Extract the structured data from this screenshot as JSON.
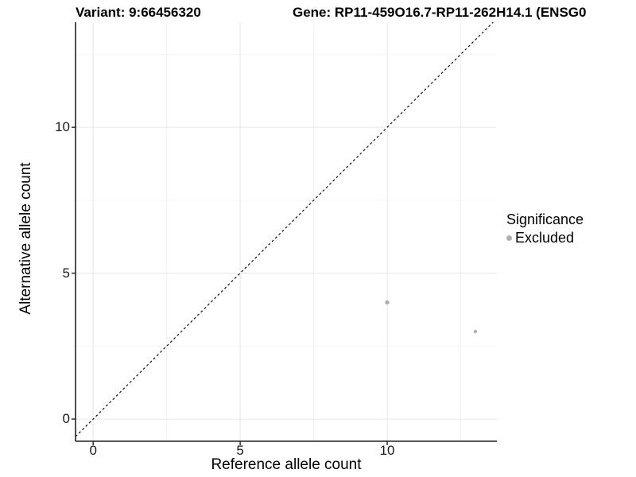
{
  "titles": {
    "variant": "Variant: 9:66456320",
    "gene": "Gene: RP11-459O16.7-RP11-262H14.1 (ENSG0"
  },
  "axes": {
    "x_label": "Reference allele count",
    "y_label": "Alternative allele count"
  },
  "legend": {
    "title": "Significance",
    "items": [
      {
        "label": "Excluded",
        "color": "#b0b0b0"
      }
    ]
  },
  "colors": {
    "background": "#ffffff",
    "grid_major": "#ebebeb",
    "grid_minor": "#f0f0f0",
    "axis_line": "#222222",
    "reference_line": "#111111",
    "point_excluded": "#b0b0b0",
    "text": "#000000"
  },
  "chart_data": {
    "type": "scatter",
    "title": "Variant: 9:66456320 — Gene: RP11-459O16.7-RP11-262H14.1 (ENSG0…)",
    "xlabel": "Reference allele count",
    "ylabel": "Alternative allele count",
    "xlim": [
      -0.6,
      13.73
    ],
    "ylim": [
      -0.76,
      13.6
    ],
    "x_major_ticks": [
      0,
      5,
      10
    ],
    "y_major_ticks": [
      0,
      5,
      10
    ],
    "x_minor_gridlines": [
      2.5,
      7.5,
      12.5
    ],
    "y_minor_gridlines": [
      2.5,
      7.5,
      12.5
    ],
    "grid": true,
    "legend_position": "right",
    "reference_line": {
      "type": "identity",
      "slope": 1,
      "intercept": 0,
      "style": "dashed"
    },
    "series": [
      {
        "name": "Excluded",
        "color": "#b0b0b0",
        "points": [
          {
            "x": 10,
            "y": 4,
            "r": 2.7
          },
          {
            "x": 13,
            "y": 3,
            "r": 2.2
          }
        ]
      }
    ]
  }
}
